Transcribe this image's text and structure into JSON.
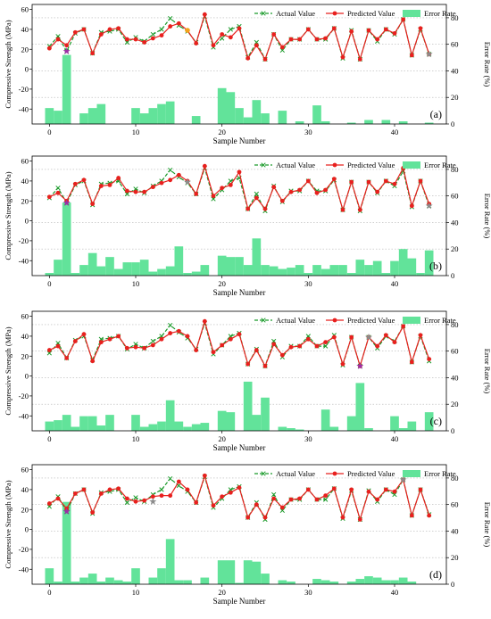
{
  "legend": {
    "actual": "Actual Value",
    "predicted": "Predicted Value",
    "error": "Error Rate"
  },
  "colors": {
    "actual": "#1a9a2a",
    "predicted": "#e8201e",
    "bar": "#62e39a",
    "star_purple": "#9b2fa5",
    "star_grey": "#8c8c8c",
    "marker_orange": "#f2a21b"
  },
  "chart_data": [
    {
      "type": "bar+line",
      "panel_label": "(a)",
      "xlabel": "Sample Number",
      "ylabel": "Compressive Strength (MPa)",
      "y2label": "Error Rate (%)",
      "xlim": [
        -2,
        46
      ],
      "xticks": [
        0,
        10,
        20,
        30,
        40
      ],
      "ylim": [
        -55,
        65
      ],
      "yticks": [
        -40,
        -20,
        0,
        20,
        40,
        60
      ],
      "y2lim": [
        0,
        90
      ],
      "y2ticks": [
        0,
        20,
        40,
        60,
        80
      ],
      "grid": true,
      "legend_position": "top-right",
      "x": [
        0,
        1,
        2,
        3,
        4,
        5,
        6,
        7,
        8,
        9,
        10,
        11,
        12,
        13,
        14,
        15,
        16,
        17,
        18,
        19,
        20,
        21,
        22,
        23,
        24,
        25,
        26,
        27,
        28,
        29,
        30,
        31,
        32,
        33,
        34,
        35,
        36,
        37,
        38,
        39,
        40,
        41,
        42,
        43,
        44
      ],
      "actual": [
        23,
        33,
        18,
        36,
        40,
        16,
        37,
        38,
        40,
        27,
        32,
        28,
        35,
        40,
        51,
        44,
        38,
        27,
        53,
        22,
        31,
        40,
        43,
        12,
        27,
        10,
        35,
        19,
        30,
        30,
        40,
        30,
        30,
        41,
        11,
        39,
        10,
        39,
        28,
        40,
        35,
        50,
        14,
        40,
        15
      ],
      "predicted": [
        21,
        30,
        24,
        37,
        40,
        16,
        35,
        40,
        41,
        30,
        30,
        27,
        31,
        34,
        43,
        46,
        39,
        26,
        55,
        24,
        35,
        32,
        41,
        11,
        24,
        10,
        35,
        22,
        30,
        30,
        40,
        30,
        31,
        41,
        12,
        38,
        10,
        39,
        30,
        40,
        36,
        50,
        14,
        41,
        15
      ],
      "error_rate": [
        12,
        10,
        52,
        0,
        8,
        12,
        15,
        0,
        0,
        0,
        12,
        8,
        12,
        15,
        17,
        0,
        0,
        6,
        0,
        0,
        27,
        24,
        12,
        5,
        18,
        8,
        0,
        10,
        0,
        2,
        0,
        14,
        2,
        0,
        0,
        1,
        0,
        3,
        0,
        3,
        0,
        2,
        0,
        0,
        1
      ],
      "stars": [
        {
          "x": 2,
          "y": 18,
          "color": "purple"
        },
        {
          "x": 44,
          "y": 15,
          "color": "grey"
        }
      ],
      "extra_markers": [
        {
          "x": 16,
          "y": 39,
          "color": "orange"
        }
      ]
    },
    {
      "type": "bar+line",
      "panel_label": "(b)",
      "xlabel": "Sample Number",
      "ylabel": "Compressive Strength (MPa)",
      "y2label": "Error Rate (%)",
      "xlim": [
        -2,
        46
      ],
      "xticks": [
        0,
        10,
        20,
        30,
        40
      ],
      "ylim": [
        -55,
        65
      ],
      "yticks": [
        -40,
        -20,
        0,
        20,
        40,
        60
      ],
      "y2lim": [
        0,
        90
      ],
      "y2ticks": [
        0,
        20,
        40,
        60,
        80
      ],
      "grid": true,
      "legend_position": "top-right",
      "x": [
        0,
        1,
        2,
        3,
        4,
        5,
        6,
        7,
        8,
        9,
        10,
        11,
        12,
        13,
        14,
        15,
        16,
        17,
        18,
        19,
        20,
        21,
        22,
        23,
        24,
        25,
        26,
        27,
        28,
        29,
        30,
        31,
        32,
        33,
        34,
        35,
        36,
        37,
        38,
        39,
        40,
        41,
        42,
        43,
        44
      ],
      "actual": [
        23,
        33,
        18,
        36,
        40,
        16,
        37,
        38,
        40,
        27,
        32,
        28,
        35,
        40,
        51,
        44,
        38,
        27,
        53,
        22,
        31,
        40,
        43,
        12,
        27,
        10,
        35,
        19,
        30,
        30,
        40,
        30,
        30,
        41,
        11,
        39,
        10,
        39,
        28,
        40,
        35,
        50,
        14,
        40,
        15
      ],
      "predicted": [
        24,
        28,
        20,
        37,
        41,
        17,
        35,
        36,
        43,
        30,
        29,
        29,
        34,
        38,
        41,
        46,
        40,
        27,
        55,
        25,
        33,
        36,
        49,
        12,
        23,
        12,
        34,
        20,
        29,
        31,
        40,
        28,
        31,
        42,
        11,
        39,
        11,
        39,
        29,
        40,
        37,
        53,
        15,
        40,
        17
      ],
      "error_rate": [
        2,
        12,
        55,
        2,
        8,
        17,
        7,
        14,
        5,
        10,
        10,
        12,
        3,
        5,
        7,
        22,
        2,
        3,
        8,
        0,
        15,
        14,
        14,
        8,
        28,
        8,
        7,
        5,
        6,
        8,
        2,
        8,
        5,
        8,
        8,
        2,
        12,
        8,
        11,
        2,
        11,
        20,
        13,
        2,
        19
      ],
      "stars": [
        {
          "x": 2,
          "y": 18,
          "color": "purple"
        },
        {
          "x": 16,
          "y": 39,
          "color": "grey"
        },
        {
          "x": 44,
          "y": 15,
          "color": "grey"
        }
      ],
      "extra_markers": []
    },
    {
      "type": "bar+line",
      "panel_label": "(c)",
      "xlabel": "Sample Number",
      "ylabel": "Compressive Strength (MPa)",
      "y2label": "Error Rate (%)",
      "xlim": [
        -2,
        46
      ],
      "xticks": [
        0,
        10,
        20,
        30,
        40
      ],
      "ylim": [
        -55,
        65
      ],
      "yticks": [
        -40,
        -20,
        0,
        20,
        40,
        60
      ],
      "y2lim": [
        0,
        90
      ],
      "y2ticks": [
        0,
        20,
        40,
        60,
        80
      ],
      "grid": true,
      "legend_position": "top-right",
      "x": [
        0,
        1,
        2,
        3,
        4,
        5,
        6,
        7,
        8,
        9,
        10,
        11,
        12,
        13,
        14,
        15,
        16,
        17,
        18,
        19,
        20,
        21,
        22,
        23,
        24,
        25,
        26,
        27,
        28,
        29,
        30,
        31,
        32,
        33,
        34,
        35,
        36,
        37,
        38,
        39,
        40,
        41,
        42,
        43,
        44
      ],
      "actual": [
        23,
        33,
        18,
        36,
        40,
        16,
        37,
        38,
        40,
        27,
        32,
        28,
        35,
        40,
        51,
        44,
        38,
        27,
        53,
        22,
        31,
        40,
        43,
        12,
        27,
        10,
        35,
        19,
        30,
        30,
        40,
        30,
        30,
        41,
        11,
        39,
        10,
        39,
        28,
        40,
        35,
        50,
        14,
        40,
        15
      ],
      "predicted": [
        26,
        30,
        18,
        35,
        42,
        15,
        34,
        37,
        40,
        28,
        29,
        28,
        31,
        37,
        43,
        45,
        40,
        26,
        55,
        24,
        31,
        37,
        42,
        12,
        26,
        10,
        32,
        21,
        29,
        30,
        37,
        30,
        34,
        39,
        12,
        39,
        10,
        39,
        30,
        41,
        34,
        50,
        14,
        41,
        17
      ],
      "error_rate": [
        7,
        8,
        12,
        3,
        11,
        11,
        4,
        12,
        0,
        0,
        12,
        3,
        5,
        7,
        23,
        7,
        3,
        5,
        6,
        0,
        15,
        14,
        0,
        37,
        12,
        25,
        0,
        3,
        2,
        1,
        0,
        0,
        16,
        3,
        0,
        11,
        36,
        2,
        0,
        0,
        11,
        2,
        7,
        0,
        14
      ],
      "stars": [
        {
          "x": 36,
          "y": 10,
          "color": "purple"
        },
        {
          "x": 37,
          "y": 39,
          "color": "grey"
        }
      ],
      "extra_markers": []
    },
    {
      "type": "bar+line",
      "panel_label": "(d)",
      "xlabel": "Sample Number",
      "ylabel": "Compressive Strength (MPa)",
      "y2label": "Error Rate (%)",
      "xlim": [
        -2,
        46
      ],
      "xticks": [
        0,
        10,
        20,
        30,
        40
      ],
      "ylim": [
        -55,
        65
      ],
      "yticks": [
        -40,
        -20,
        0,
        20,
        40,
        60
      ],
      "y2lim": [
        0,
        90
      ],
      "y2ticks": [
        0,
        20,
        40,
        60,
        80
      ],
      "grid": true,
      "legend_position": "top-right",
      "x": [
        0,
        1,
        2,
        3,
        4,
        5,
        6,
        7,
        8,
        9,
        10,
        11,
        12,
        13,
        14,
        15,
        16,
        17,
        18,
        19,
        20,
        21,
        22,
        23,
        24,
        25,
        26,
        27,
        28,
        29,
        30,
        31,
        32,
        33,
        34,
        35,
        36,
        37,
        38,
        39,
        40,
        41,
        42,
        43,
        44
      ],
      "actual": [
        23,
        33,
        18,
        36,
        40,
        16,
        37,
        38,
        40,
        27,
        32,
        28,
        35,
        40,
        51,
        44,
        38,
        27,
        53,
        22,
        31,
        40,
        43,
        12,
        27,
        10,
        35,
        19,
        30,
        30,
        40,
        30,
        30,
        41,
        11,
        39,
        10,
        39,
        28,
        40,
        35,
        50,
        14,
        40,
        15
      ],
      "predicted": [
        26,
        31,
        21,
        36,
        40,
        17,
        36,
        40,
        41,
        31,
        28,
        29,
        33,
        34,
        34,
        48,
        40,
        27,
        54,
        24,
        33,
        37,
        42,
        12,
        25,
        12,
        31,
        22,
        30,
        31,
        40,
        30,
        34,
        41,
        12,
        40,
        10,
        38,
        30,
        40,
        38,
        50,
        14,
        40,
        14
      ],
      "error_rate": [
        12,
        2,
        62,
        2,
        5,
        8,
        2,
        5,
        3,
        2,
        12,
        0,
        5,
        12,
        34,
        3,
        3,
        0,
        5,
        0,
        18,
        18,
        1,
        18,
        17,
        8,
        0,
        3,
        2,
        0,
        0,
        4,
        3,
        2,
        0,
        2,
        4,
        6,
        5,
        3,
        3,
        5,
        2,
        0,
        0
      ],
      "stars": [
        {
          "x": 2,
          "y": 18,
          "color": "purple"
        },
        {
          "x": 12,
          "y": 28,
          "color": "grey"
        },
        {
          "x": 41,
          "y": 50,
          "color": "grey"
        }
      ],
      "extra_markers": []
    }
  ]
}
